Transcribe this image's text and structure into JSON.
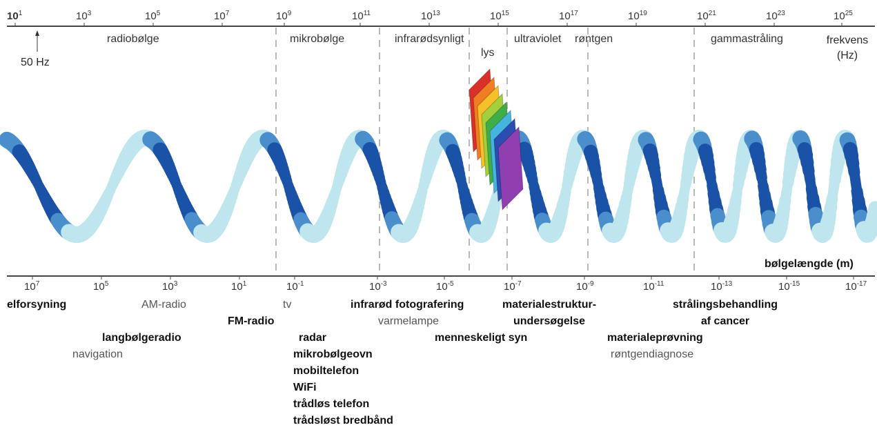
{
  "frequency_ticks": [
    {
      "base": "10",
      "exp": "1"
    },
    {
      "base": "10",
      "exp": "3"
    },
    {
      "base": "10",
      "exp": "5"
    },
    {
      "base": "10",
      "exp": "7"
    },
    {
      "base": "10",
      "exp": "9"
    },
    {
      "base": "10",
      "exp": "11"
    },
    {
      "base": "10",
      "exp": "13"
    },
    {
      "base": "10",
      "exp": "15"
    },
    {
      "base": "10",
      "exp": "17"
    },
    {
      "base": "10",
      "exp": "19"
    },
    {
      "base": "10",
      "exp": "21"
    },
    {
      "base": "10",
      "exp": "23"
    },
    {
      "base": "10",
      "exp": "25"
    }
  ],
  "wavelength_ticks": [
    {
      "base": "10",
      "exp": "7"
    },
    {
      "base": "10",
      "exp": "5"
    },
    {
      "base": "10",
      "exp": "3"
    },
    {
      "base": "10",
      "exp": "1"
    },
    {
      "base": "10",
      "exp": "-1"
    },
    {
      "base": "10",
      "exp": "-3"
    },
    {
      "base": "10",
      "exp": "-5"
    },
    {
      "base": "10",
      "exp": "-7"
    },
    {
      "base": "10",
      "exp": "-9"
    },
    {
      "base": "10",
      "exp": "-11"
    },
    {
      "base": "10",
      "exp": "-13"
    },
    {
      "base": "10",
      "exp": "-15"
    },
    {
      "base": "10",
      "exp": "-17"
    }
  ],
  "bands": {
    "radio": "radiobølge",
    "micro": "mikrobølge",
    "infrared": "infrarødsynligt",
    "visible": "lys",
    "ultraviolet": "ultraviolet",
    "xray": "røntgen",
    "gamma": "gammastråling"
  },
  "marker_50hz": "50 Hz",
  "freq_axis_label": [
    "frekvens",
    "(Hz)"
  ],
  "wavelength_axis_label": "bølgelængde (m)",
  "applications": {
    "elforsyning": "elforsyning",
    "am_radio": "AM-radio",
    "langbolgeradio": "langbølgeradio",
    "navigation": "navigation",
    "fm_radio": "FM-radio",
    "tv": "tv",
    "micro_list": [
      "radar",
      "mikrobølgeovn",
      "mobiltelefon",
      "WiFi",
      "trådløs telefon",
      "trådsløst bredbånd"
    ],
    "infrarod_foto": "infrarød fotografering",
    "varmelampe": "varmelampe",
    "menneskeligt_syn": "menneskeligt syn",
    "materialestruktur": [
      "materialestruktur-",
      "undersøgelse"
    ],
    "materialeprovning": "materialeprøvning",
    "rontgendiagnose": "røntgendiagnose",
    "straling": [
      "strålingsbehandling",
      "af cancer"
    ]
  },
  "colors": {
    "wave_light": "#bfe6ee",
    "wave_dark": "#1a52a8",
    "spectrum": [
      "#d9302a",
      "#f07d22",
      "#f5c02a",
      "#a5cf3a",
      "#3fae49",
      "#45b5df",
      "#2b4cb0",
      "#8f3fb0"
    ]
  }
}
